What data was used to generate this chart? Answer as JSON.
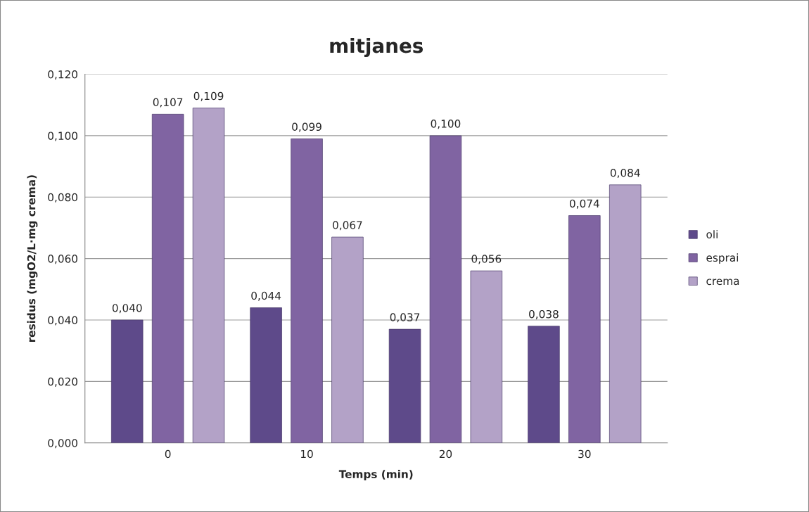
{
  "chart_data": {
    "type": "bar",
    "title": "mitjanes",
    "xlabel": "Temps (min)",
    "ylabel": "residus (mgO2/L·mg crema)",
    "categories": [
      "0",
      "10",
      "20",
      "30"
    ],
    "series": [
      {
        "name": "oli",
        "color": "#5e4a8a",
        "values": [
          0.04,
          0.044,
          0.037,
          0.038
        ],
        "value_labels": [
          "0,040",
          "0,044",
          "0,037",
          "0,038"
        ]
      },
      {
        "name": "esprai",
        "color": "#8064a2",
        "values": [
          0.107,
          0.099,
          0.1,
          0.074
        ],
        "value_labels": [
          "0,107",
          "0,099",
          "0,100",
          "0,074"
        ]
      },
      {
        "name": "crema",
        "color": "#b3a2c7",
        "values": [
          0.109,
          0.067,
          0.056,
          0.084
        ],
        "value_labels": [
          "0,109",
          "0,067",
          "0,056",
          "0,084"
        ]
      }
    ],
    "ylim": [
      0,
      0.12
    ],
    "yticks": [
      {
        "value": 0,
        "label": "0,000"
      },
      {
        "value": 0.02,
        "label": "0,020"
      },
      {
        "value": 0.04,
        "label": "0,040"
      },
      {
        "value": 0.06,
        "label": "0,060"
      },
      {
        "value": 0.08,
        "label": "0,080"
      },
      {
        "value": 0.1,
        "label": "0,100"
      },
      {
        "value": 0.12,
        "label": "0,120"
      }
    ],
    "grid": "y",
    "legend": "right"
  }
}
